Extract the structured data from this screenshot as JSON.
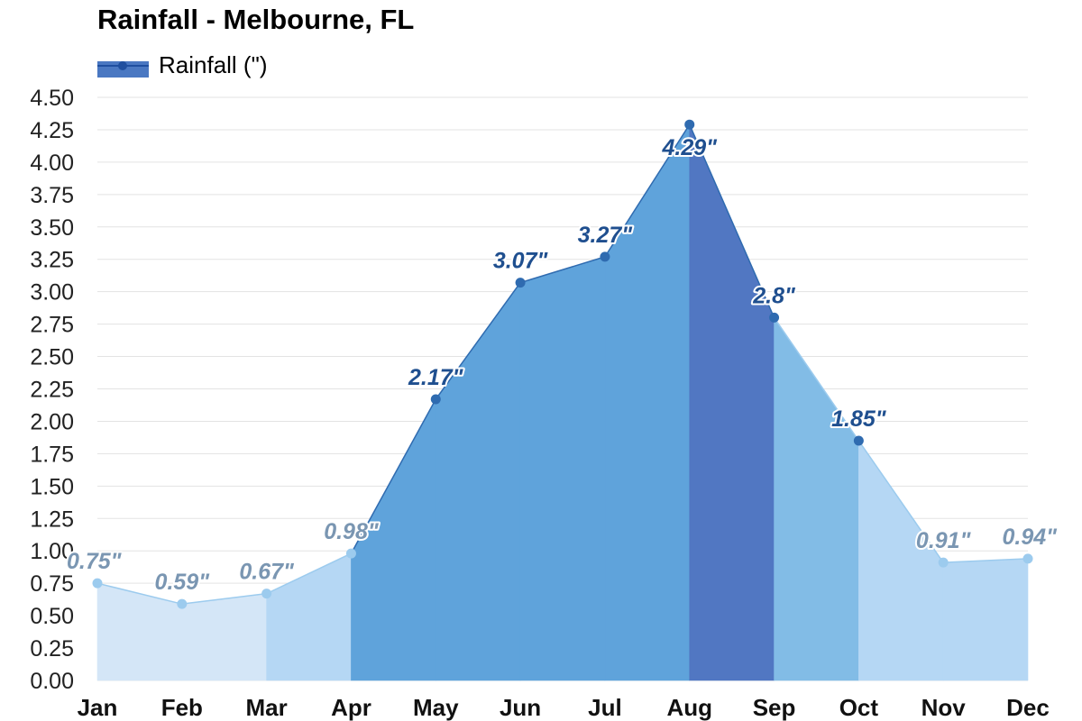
{
  "colors": {
    "light": "#d4e6f7",
    "medium_light": "#b5d7f4",
    "medium": "#82bce6",
    "strong": "#5fa3db",
    "peak": "#5177c2",
    "line_light": "#9ccbee",
    "line_dark": "#2f6bb0",
    "label_light": "#7a96b2",
    "label_dark": "#1f4f8f",
    "grid": "#e3e3e3",
    "legend_swatch": "#4a78c2",
    "legend_marker": "#1f4f9f"
  },
  "chart_data": {
    "type": "area",
    "title": "Rainfall - Melbourne, FL",
    "legend": "top-left",
    "categories": [
      "Jan",
      "Feb",
      "Mar",
      "Apr",
      "May",
      "Jun",
      "Jul",
      "Aug",
      "Sep",
      "Oct",
      "Nov",
      "Dec"
    ],
    "series": [
      {
        "name": "Rainfall (\")",
        "values": [
          0.75,
          0.59,
          0.67,
          0.98,
          2.17,
          3.07,
          3.27,
          4.29,
          2.8,
          1.85,
          0.91,
          0.94
        ],
        "labels": [
          "0.75\"",
          "0.59\"",
          "0.67\"",
          "0.98\"",
          "2.17\"",
          "3.07\"",
          "3.27\"",
          "4.29\"",
          "2.8\"",
          "1.85\"",
          "0.91\"",
          "0.94\""
        ],
        "intensity": [
          "light",
          "light",
          "medium_light",
          "strong",
          "strong",
          "strong",
          "strong",
          "peak",
          "medium",
          "medium_light",
          "medium_light",
          "medium_light"
        ]
      }
    ],
    "yticks": [
      "0.00",
      "0.25",
      "0.50",
      "0.75",
      "1.00",
      "1.25",
      "1.50",
      "1.75",
      "2.00",
      "2.25",
      "2.50",
      "2.75",
      "3.00",
      "3.25",
      "3.50",
      "3.75",
      "4.00",
      "4.25",
      "4.50"
    ],
    "ylim": [
      0,
      4.5
    ],
    "grid": true,
    "xlabel": "",
    "ylabel": ""
  }
}
